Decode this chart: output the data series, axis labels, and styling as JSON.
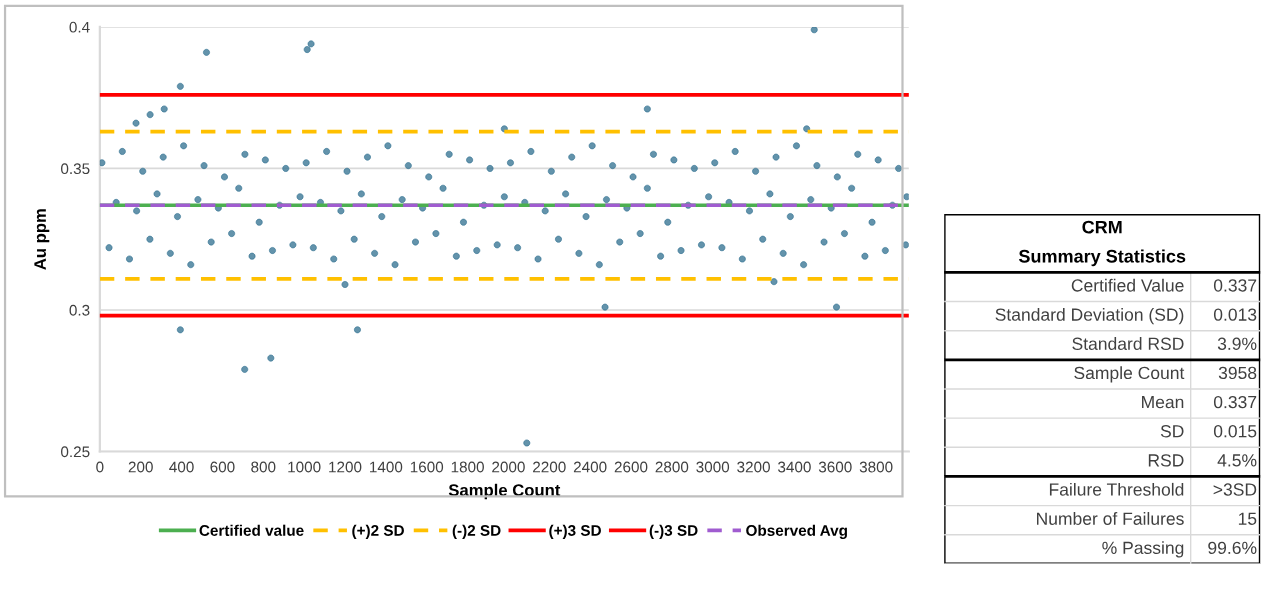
{
  "chart_data": [
    {
      "type": "scatter",
      "xlabel": "Sample Count",
      "ylabel": "Au ppm",
      "xlim": [
        0,
        3960
      ],
      "ylim": [
        0.25,
        0.4
      ],
      "xticks": [
        0,
        200,
        400,
        600,
        800,
        1000,
        1200,
        1400,
        1600,
        1800,
        2000,
        2200,
        2400,
        2600,
        2800,
        3000,
        3200,
        3400,
        3600,
        3800
      ],
      "yticks": [
        0.25,
        0.3,
        0.35,
        0.4
      ],
      "grid": "y",
      "legend": "bottom",
      "marker": "circle",
      "series": [
        {
          "type": "scatter",
          "color": "#2f6f8f",
          "x": [
            10,
            45,
            80,
            110,
            145,
            180,
            210,
            245,
            280,
            310,
            345,
            380,
            410,
            445,
            480,
            510,
            545,
            580,
            610,
            645,
            680,
            710,
            745,
            780,
            810,
            845,
            880,
            910,
            945,
            980,
            1010,
            1045,
            1080,
            1110,
            1145,
            1180,
            1210,
            1245,
            1280,
            1310,
            1345,
            1380,
            1410,
            1445,
            1480,
            1510,
            1545,
            1580,
            1610,
            1645,
            1680,
            1710,
            1745,
            1780,
            1810,
            1845,
            1880,
            1910,
            1945,
            1980,
            2010,
            2045,
            2080,
            2110,
            2145,
            2180,
            2210,
            2245,
            2280,
            2310,
            2345,
            2380,
            2410,
            2445,
            2480,
            2510,
            2545,
            2580,
            2610,
            2645,
            2680,
            2710,
            2745,
            2780,
            2810,
            2845,
            2880,
            2910,
            2945,
            2980,
            3010,
            3045,
            3080,
            3110,
            3145,
            3180,
            3210,
            3245,
            3280,
            3310,
            3345,
            3380,
            3410,
            3445,
            3480,
            3510,
            3545,
            3580,
            3610,
            3645,
            3680,
            3710,
            3745,
            3780,
            3810,
            3845,
            3880,
            3910,
            3945,
            3950,
            522,
            1015,
            1034,
            394,
            315,
            246,
            177,
            394,
            709,
            837,
            1261,
            2090,
            2473,
            3606,
            3497,
            2680,
            1200,
            1980,
            3460,
            3300
          ],
          "values": [
            0.352,
            0.322,
            0.338,
            0.356,
            0.318,
            0.335,
            0.349,
            0.325,
            0.341,
            0.354,
            0.32,
            0.333,
            0.358,
            0.316,
            0.339,
            0.351,
            0.324,
            0.336,
            0.347,
            0.327,
            0.343,
            0.355,
            0.319,
            0.331,
            0.353,
            0.321,
            0.337,
            0.35,
            0.323,
            0.34,
            0.352,
            0.322,
            0.338,
            0.356,
            0.318,
            0.335,
            0.349,
            0.325,
            0.341,
            0.354,
            0.32,
            0.333,
            0.358,
            0.316,
            0.339,
            0.351,
            0.324,
            0.336,
            0.347,
            0.327,
            0.343,
            0.355,
            0.319,
            0.331,
            0.353,
            0.321,
            0.337,
            0.35,
            0.323,
            0.34,
            0.352,
            0.322,
            0.338,
            0.356,
            0.318,
            0.335,
            0.349,
            0.325,
            0.341,
            0.354,
            0.32,
            0.333,
            0.358,
            0.316,
            0.339,
            0.351,
            0.324,
            0.336,
            0.347,
            0.327,
            0.343,
            0.355,
            0.319,
            0.331,
            0.353,
            0.321,
            0.337,
            0.35,
            0.323,
            0.34,
            0.352,
            0.322,
            0.338,
            0.356,
            0.318,
            0.335,
            0.349,
            0.325,
            0.341,
            0.354,
            0.32,
            0.333,
            0.358,
            0.316,
            0.339,
            0.351,
            0.324,
            0.336,
            0.347,
            0.327,
            0.343,
            0.355,
            0.319,
            0.331,
            0.353,
            0.321,
            0.337,
            0.35,
            0.323,
            0.34,
            0.391,
            0.392,
            0.394,
            0.379,
            0.371,
            0.369,
            0.366,
            0.293,
            0.279,
            0.283,
            0.293,
            0.253,
            0.301,
            0.301,
            0.399,
            0.371,
            0.309,
            0.364,
            0.364,
            0.31
          ]
        }
      ],
      "ref_lines": [
        {
          "axis": "y",
          "value": 0.337,
          "label": "Certified value",
          "color": "#4caf50",
          "line_style": "solid"
        },
        {
          "axis": "y",
          "value": 0.363,
          "label": "(+)2 SD",
          "color": "#ffc000",
          "line_style": "dashed"
        },
        {
          "axis": "y",
          "value": 0.311,
          "label": "(-)2 SD",
          "color": "#ffc000",
          "line_style": "dashed"
        },
        {
          "axis": "y",
          "value": 0.376,
          "label": "(+)3 SD",
          "color": "#ff0000",
          "line_style": "solid"
        },
        {
          "axis": "y",
          "value": 0.298,
          "label": "(-)3 SD",
          "color": "#ff0000",
          "line_style": "solid"
        },
        {
          "axis": "y",
          "value": 0.337,
          "label": "Observed Avg",
          "color": "#a05cd0",
          "line_style": "dashed"
        }
      ]
    },
    {
      "type": "other",
      "title": "CRM",
      "subtitle": "Summary Statistics",
      "annotations": [
        "Certified Value",
        "0.337",
        "Standard Deviation (SD)",
        "0.013",
        "Standard RSD",
        "3.9%",
        "Sample Count",
        "3958",
        "Mean",
        "0.337",
        "SD",
        "0.015",
        "RSD",
        "4.5%",
        "Failure Threshold",
        ">3SD",
        "Number of Failures",
        "15",
        "% Passing",
        "99.6%"
      ]
    }
  ]
}
